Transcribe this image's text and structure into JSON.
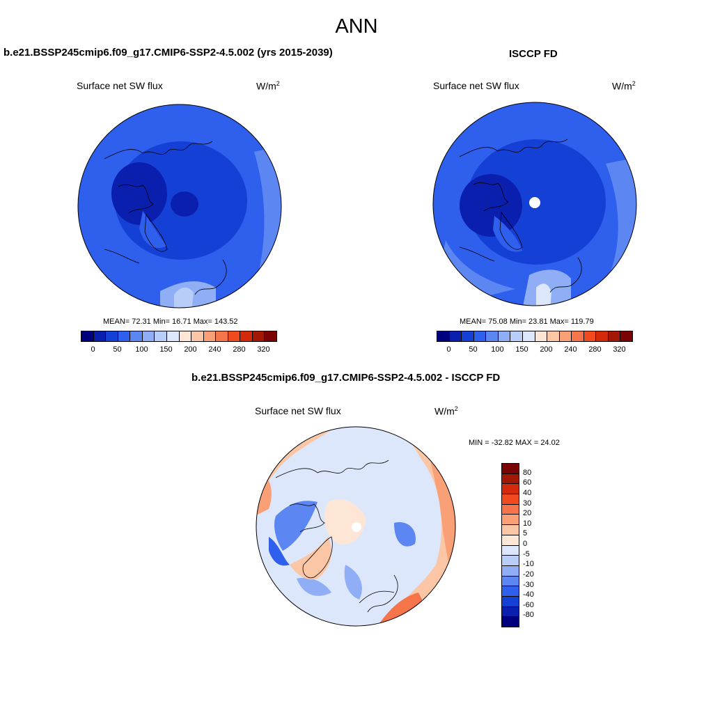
{
  "title": "ANN",
  "panels": {
    "model": {
      "title": "b.e21.BSSP245cmip6.f09_g17.CMIP6-SSP2-4.5.002 (yrs 2015-2039)",
      "variable": "Surface net SW flux",
      "units": "W/m",
      "units_sup": "2",
      "stats": "MEAN=  72.31  Min=  16.71  Max= 143.52",
      "mean": 72.31,
      "min": 16.71,
      "max": 143.52
    },
    "obs": {
      "title": "ISCCP FD",
      "variable": "Surface net SW flux",
      "units": "W/m",
      "units_sup": "2",
      "stats": "MEAN=  75.08  Min=  23.81  Max= 119.79",
      "mean": 75.08,
      "min": 23.81,
      "max": 119.79
    },
    "diff": {
      "title": "b.e21.BSSP245cmip6.f09_g17.CMIP6-SSP2-4.5.002 - ISCCP FD",
      "variable": "Surface net SW flux",
      "units": "W/m",
      "units_sup": "2",
      "stats": "MIN = -32.82 MAX =  24.02",
      "min": -32.82,
      "max": 24.02
    }
  },
  "colorbar_abs": {
    "ticks": [
      "0",
      "50",
      "100",
      "150",
      "200",
      "240",
      "280",
      "320"
    ],
    "colors": [
      "#00007f",
      "#0a1fae",
      "#1540d6",
      "#2e5fed",
      "#5c86f2",
      "#8faef5",
      "#b8cdf8",
      "#dde7fb",
      "#fde6d5",
      "#fbc6a6",
      "#f9a077",
      "#f6744a",
      "#f14a1e",
      "#d42a0b",
      "#a31805",
      "#7a0403"
    ]
  },
  "colorbar_diff": {
    "ticks": [
      "80",
      "60",
      "40",
      "30",
      "20",
      "10",
      "5",
      "0",
      "-5",
      "-10",
      "-20",
      "-30",
      "-40",
      "-60",
      "-80"
    ],
    "colors": [
      "#7a0403",
      "#a31805",
      "#d42a0b",
      "#f14a1e",
      "#f6744a",
      "#f9a077",
      "#fbc6a6",
      "#fde6d5",
      "#dde7fb",
      "#b8cdf8",
      "#8faef5",
      "#5c86f2",
      "#2e5fed",
      "#1540d6",
      "#0a1fae",
      "#00007f"
    ]
  }
}
